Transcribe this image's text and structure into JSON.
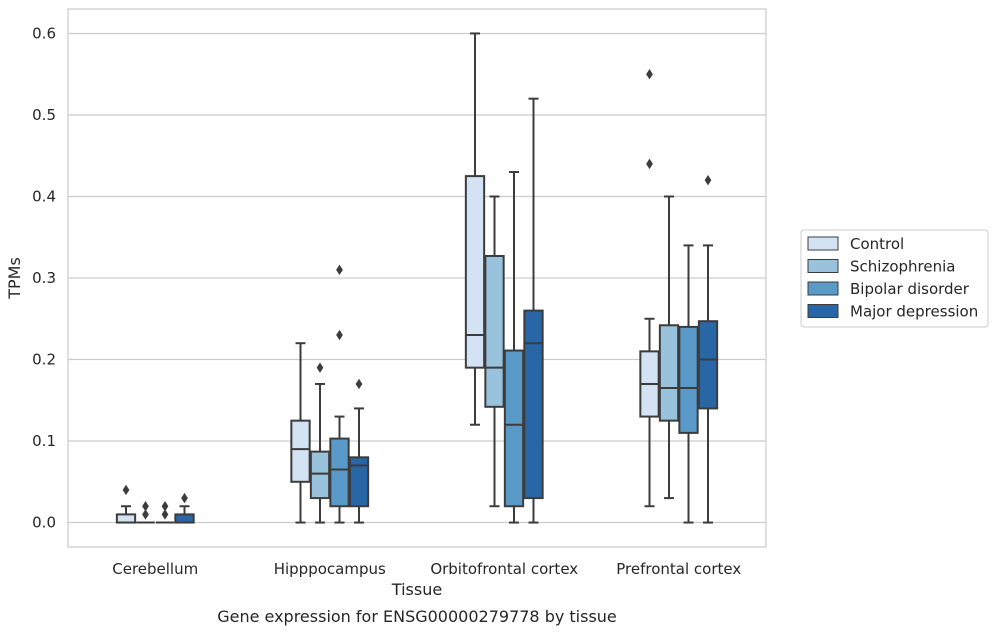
{
  "chart_data": {
    "type": "box",
    "title": "",
    "caption": "Gene expression for ENSG00000279778 by tissue",
    "xlabel": "Tissue",
    "ylabel": "TPMs",
    "ylim": [
      -0.03,
      0.63
    ],
    "yticks": [
      0.0,
      0.1,
      0.2,
      0.3,
      0.4,
      0.5,
      0.6
    ],
    "ytick_labels": [
      "0.0",
      "0.1",
      "0.2",
      "0.3",
      "0.4",
      "0.5",
      "0.6"
    ],
    "grid": "horizontal",
    "legend_position": "right",
    "categories": [
      "Cerebellum",
      "Hipppocampus",
      "Orbitofrontal cortex",
      "Prefrontal cortex"
    ],
    "series": [
      {
        "name": "Control",
        "color": "#d4e3f3",
        "boxes": [
          {
            "whislo": 0.0,
            "q1": 0.0,
            "med": 0.0,
            "q3": 0.01,
            "whishi": 0.02,
            "fliers": [
              0.04
            ]
          },
          {
            "whislo": 0.0,
            "q1": 0.05,
            "med": 0.09,
            "q3": 0.125,
            "whishi": 0.22,
            "fliers": []
          },
          {
            "whislo": 0.12,
            "q1": 0.19,
            "med": 0.23,
            "q3": 0.425,
            "whishi": 0.6,
            "fliers": []
          },
          {
            "whislo": 0.02,
            "q1": 0.13,
            "med": 0.17,
            "q3": 0.21,
            "whishi": 0.25,
            "fliers": [
              0.44,
              0.55
            ]
          }
        ]
      },
      {
        "name": "Schizophrenia",
        "color": "#99c3dd",
        "boxes": [
          {
            "whislo": 0.0,
            "q1": 0.0,
            "med": 0.0,
            "q3": 0.0,
            "whishi": 0.0,
            "fliers": [
              0.01,
              0.02
            ]
          },
          {
            "whislo": 0.0,
            "q1": 0.03,
            "med": 0.06,
            "q3": 0.087,
            "whishi": 0.17,
            "fliers": [
              0.19
            ]
          },
          {
            "whislo": 0.02,
            "q1": 0.142,
            "med": 0.19,
            "q3": 0.327,
            "whishi": 0.4,
            "fliers": []
          },
          {
            "whislo": 0.03,
            "q1": 0.125,
            "med": 0.165,
            "q3": 0.242,
            "whishi": 0.4,
            "fliers": []
          }
        ]
      },
      {
        "name": "Bipolar disorder",
        "color": "#5a9ac8",
        "boxes": [
          {
            "whislo": 0.0,
            "q1": 0.0,
            "med": 0.0,
            "q3": 0.0,
            "whishi": 0.0,
            "fliers": [
              0.01,
              0.02
            ]
          },
          {
            "whislo": 0.0,
            "q1": 0.02,
            "med": 0.065,
            "q3": 0.103,
            "whishi": 0.13,
            "fliers": [
              0.23,
              0.31
            ]
          },
          {
            "whislo": 0.0,
            "q1": 0.02,
            "med": 0.12,
            "q3": 0.211,
            "whishi": 0.43,
            "fliers": []
          },
          {
            "whislo": 0.0,
            "q1": 0.11,
            "med": 0.165,
            "q3": 0.24,
            "whishi": 0.34,
            "fliers": []
          }
        ]
      },
      {
        "name": "Major depression",
        "color": "#2866a6",
        "boxes": [
          {
            "whislo": 0.0,
            "q1": 0.0,
            "med": 0.0,
            "q3": 0.01,
            "whishi": 0.02,
            "fliers": [
              0.03
            ]
          },
          {
            "whislo": 0.0,
            "q1": 0.02,
            "med": 0.07,
            "q3": 0.08,
            "whishi": 0.14,
            "fliers": [
              0.17
            ]
          },
          {
            "whislo": 0.0,
            "q1": 0.03,
            "med": 0.22,
            "q3": 0.26,
            "whishi": 0.52,
            "fliers": []
          },
          {
            "whislo": 0.0,
            "q1": 0.14,
            "med": 0.2,
            "q3": 0.247,
            "whishi": 0.34,
            "fliers": [
              0.42
            ]
          }
        ]
      }
    ],
    "colors": {
      "line": "#3c3c3c",
      "grid": "#cccccc",
      "frame": "#cccccc"
    }
  }
}
